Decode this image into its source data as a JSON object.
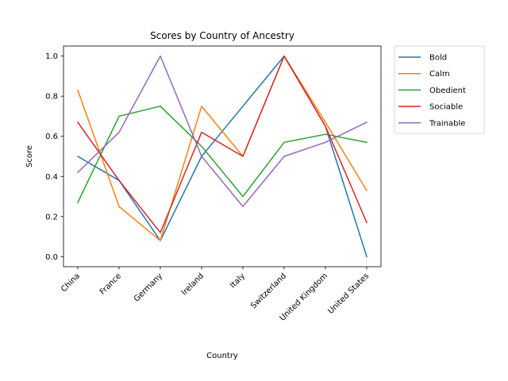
{
  "chart_data": {
    "type": "line",
    "title": "Scores by Country of Ancestry",
    "xlabel": "Country",
    "ylabel": "Score",
    "categories": [
      "China",
      "France",
      "Germany",
      "Ireland",
      "Italy",
      "Switzerland",
      "United Kingdom",
      "United States"
    ],
    "ylim": [
      -0.05,
      1.05
    ],
    "yticks": [
      "0.0",
      "0.2",
      "0.4",
      "0.6",
      "0.8",
      "1.0"
    ],
    "grid": false,
    "legend_position": "outside-top-right",
    "series": [
      {
        "name": "Bold",
        "color": "#1f77b4",
        "values": [
          0.5,
          0.38,
          0.08,
          0.5,
          0.75,
          1.0,
          0.65,
          0.0
        ]
      },
      {
        "name": "Calm",
        "color": "#ff7f0e",
        "values": [
          0.83,
          0.25,
          0.08,
          0.75,
          0.5,
          1.0,
          0.67,
          0.33
        ]
      },
      {
        "name": "Obedient",
        "color": "#2ca02c",
        "values": [
          0.27,
          0.7,
          0.75,
          0.55,
          0.3,
          0.57,
          0.61,
          0.57
        ]
      },
      {
        "name": "Sociable",
        "color": "#d62728",
        "values": [
          0.67,
          0.38,
          0.12,
          0.62,
          0.5,
          1.0,
          0.65,
          0.17
        ]
      },
      {
        "name": "Trainable",
        "color": "#9467bd",
        "values": [
          0.42,
          0.62,
          1.0,
          0.5,
          0.25,
          0.5,
          0.57,
          0.67
        ]
      }
    ]
  }
}
